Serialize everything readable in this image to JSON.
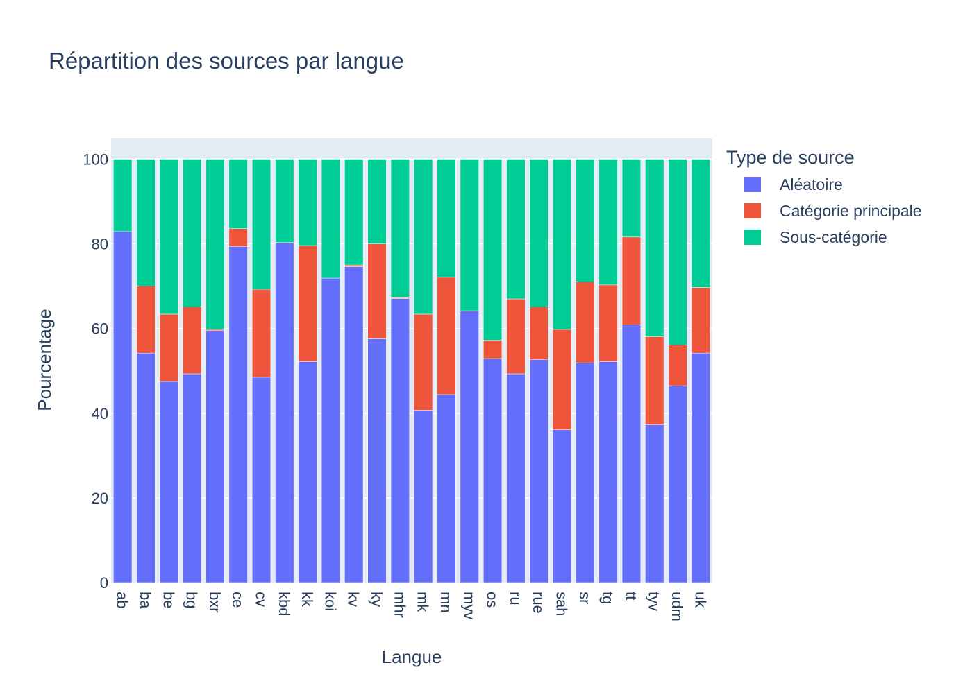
{
  "chart_data": {
    "type": "bar",
    "barmode": "stack",
    "title": "Répartition des sources par langue",
    "xlabel": "Langue",
    "ylabel": "Pourcentage",
    "ylim": [
      0,
      105
    ],
    "yticks": [
      0,
      20,
      40,
      60,
      80,
      100
    ],
    "grid": true,
    "legend_title": "Type de source",
    "legend_position": "right",
    "categories": [
      "ab",
      "ba",
      "be",
      "bg",
      "bxr",
      "ce",
      "cv",
      "kbd",
      "kk",
      "koi",
      "kv",
      "ky",
      "mhr",
      "mk",
      "mn",
      "myv",
      "os",
      "ru",
      "rue",
      "sah",
      "sr",
      "tg",
      "tt",
      "tyv",
      "udm",
      "uk"
    ],
    "series": [
      {
        "name": "Aléatoire",
        "color": "#636efa",
        "values": [
          82.9,
          54.2,
          47.5,
          49.3,
          59.5,
          79.4,
          48.5,
          80.2,
          52.2,
          71.9,
          74.6,
          57.6,
          67.1,
          40.7,
          44.4,
          64.1,
          52.9,
          49.3,
          52.7,
          36.1,
          51.9,
          52.2,
          60.9,
          37.3,
          46.5,
          54.2
        ]
      },
      {
        "name": "Catégorie principale",
        "color": "#ef553b",
        "values": [
          0.0,
          15.8,
          15.9,
          15.8,
          0.3,
          4.2,
          20.8,
          0.1,
          27.4,
          0.0,
          0.4,
          22.4,
          0.3,
          22.7,
          27.7,
          0.1,
          4.3,
          17.7,
          12.4,
          23.7,
          19.1,
          18.1,
          20.7,
          20.8,
          9.6,
          15.5
        ]
      },
      {
        "name": "Sous-catégorie",
        "color": "#00cc96",
        "values": [
          17.1,
          30.0,
          36.6,
          34.9,
          40.2,
          16.4,
          30.7,
          19.7,
          20.4,
          28.1,
          25.0,
          20.0,
          32.6,
          36.6,
          27.9,
          35.8,
          42.8,
          33.0,
          34.9,
          40.2,
          29.0,
          29.7,
          18.4,
          41.9,
          43.9,
          30.3
        ]
      }
    ]
  }
}
